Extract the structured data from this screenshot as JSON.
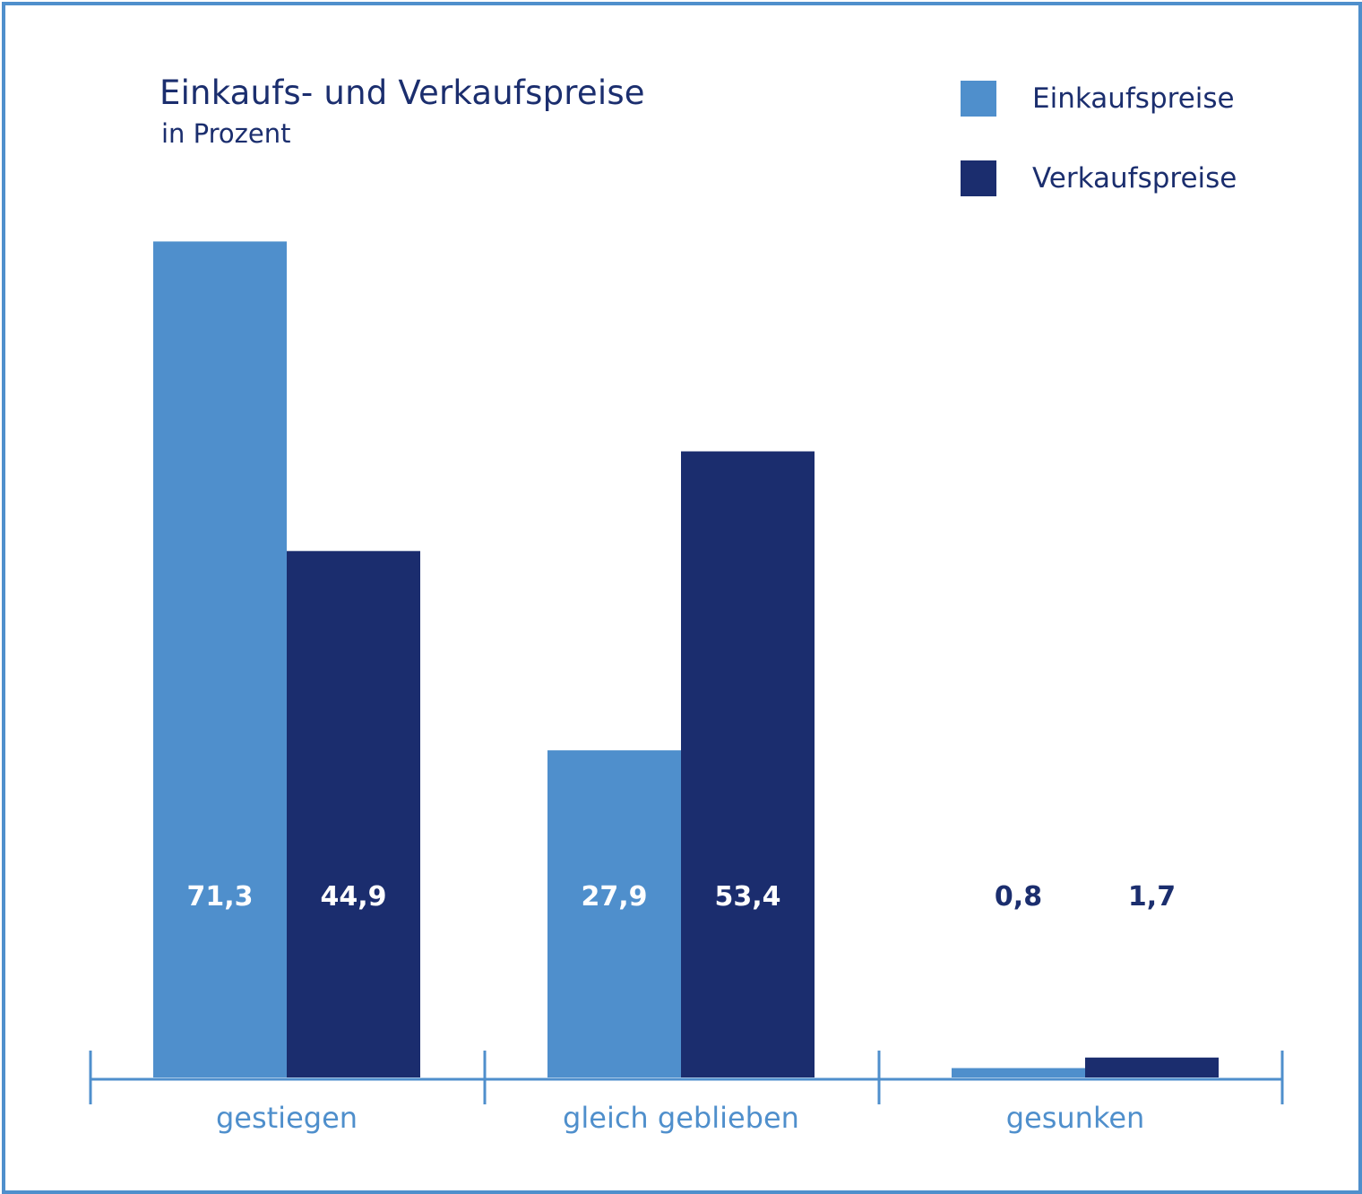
{
  "chart_data": {
    "type": "bar",
    "title": "Einkaufs- und Verkaufspreise",
    "subtitle": "in Prozent",
    "categories": [
      "gestiegen",
      "gleich geblieben",
      "gesunken"
    ],
    "series": [
      {
        "name": "Einkaufspreise",
        "color": "#4f8fcc",
        "values": [
          71.3,
          27.9,
          0.8
        ],
        "labels": [
          "71,3",
          "27,9",
          "0,8"
        ]
      },
      {
        "name": "Verkaufspreise",
        "color": "#1b2d6e",
        "values": [
          44.9,
          53.4,
          1.7
        ],
        "labels": [
          "44,9",
          "53,4",
          "1,7"
        ]
      }
    ],
    "ylim": [
      0,
      100
    ],
    "grid": false,
    "legend": "top-right"
  }
}
